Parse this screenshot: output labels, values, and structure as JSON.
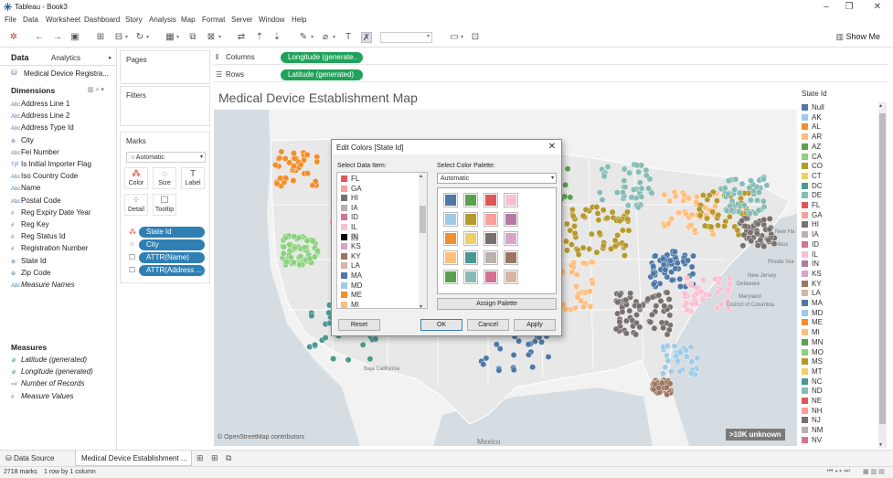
{
  "window": {
    "title": "Tableau - Book3"
  },
  "menu": [
    "File",
    "Data",
    "Worksheet",
    "Dashboard",
    "Story",
    "Analysis",
    "Map",
    "Format",
    "Server",
    "Window",
    "Help"
  ],
  "toolbar": {
    "show_me": "Show Me"
  },
  "datapane": {
    "tab_data": "Data",
    "tab_analytics": "Analytics",
    "datasource": "Medical Device Registra...",
    "dimensions_header": "Dimensions",
    "dimensions": [
      {
        "icon": "Abc",
        "label": "Address Line 1"
      },
      {
        "icon": "Abc",
        "label": "Address Line 2"
      },
      {
        "icon": "Abc",
        "label": "Address Type Id"
      },
      {
        "icon": "globe-icon",
        "label": "City"
      },
      {
        "icon": "Abc",
        "label": "Fei Number"
      },
      {
        "icon": "T|F",
        "label": "Is Initial Importer Flag"
      },
      {
        "icon": "Abc",
        "label": "Iso Country Code"
      },
      {
        "icon": "Abc",
        "label": "Name"
      },
      {
        "icon": "Abc",
        "label": "Postal Code"
      },
      {
        "icon": "#",
        "label": "Reg Expiry Date Year"
      },
      {
        "icon": "#",
        "label": "Reg Key"
      },
      {
        "icon": "#",
        "label": "Reg Status Id"
      },
      {
        "icon": "#",
        "label": "Registration Number"
      },
      {
        "icon": "globe-icon",
        "label": "State Id"
      },
      {
        "icon": "globe-icon",
        "label": "Zip Code"
      },
      {
        "icon": "Abc",
        "label": "Measure Names"
      }
    ],
    "measures_header": "Measures",
    "measures": [
      {
        "icon": "globe-icon",
        "label": "Latitude (generated)"
      },
      {
        "icon": "globe-icon",
        "label": "Longitude (generated)"
      },
      {
        "icon": "=#",
        "label": "Number of Records"
      },
      {
        "icon": "#",
        "label": "Measure Values"
      }
    ]
  },
  "pages": {
    "title": "Pages"
  },
  "filters": {
    "title": "Filters"
  },
  "marks": {
    "title": "Marks",
    "type": "Automatic",
    "buttons": [
      "Color",
      "Size",
      "Label",
      "Detail",
      "Tooltip"
    ],
    "pills": [
      {
        "icon": "color-icon",
        "label": "State Id"
      },
      {
        "icon": "detail-icon",
        "label": "City"
      },
      {
        "icon": "tooltip-icon",
        "label": "ATTR(Name)"
      },
      {
        "icon": "tooltip-icon",
        "label": "ATTR(Address ..."
      }
    ]
  },
  "shelves": {
    "columns_label": "Columns",
    "columns_pill": "Longitude (generate..",
    "rows_label": "Rows",
    "rows_pill": "Latitude (generated)"
  },
  "map": {
    "title": "Medical Device Establishment Map",
    "attribution": "© OpenStreetMap contributors",
    "unknown_badge": ">10K unknown",
    "places": [
      "New Ha",
      "Mass",
      "Rhode Isla",
      "New Jersey",
      "Delaware",
      "Maryland",
      "District of Columbia",
      "Baja California",
      "Mexico"
    ]
  },
  "legend": {
    "title": "State Id",
    "items": [
      {
        "label": "Null",
        "color": "#4e79a7"
      },
      {
        "label": "AK",
        "color": "#a0cbe8"
      },
      {
        "label": "AL",
        "color": "#f28e2b"
      },
      {
        "label": "AR",
        "color": "#ffbe7d"
      },
      {
        "label": "AZ",
        "color": "#59a14f"
      },
      {
        "label": "CA",
        "color": "#8cd17d"
      },
      {
        "label": "CO",
        "color": "#b6992d"
      },
      {
        "label": "CT",
        "color": "#f1ce63"
      },
      {
        "label": "DC",
        "color": "#499894"
      },
      {
        "label": "DE",
        "color": "#86bcb6"
      },
      {
        "label": "FL",
        "color": "#e15759"
      },
      {
        "label": "GA",
        "color": "#ff9d9a"
      },
      {
        "label": "HI",
        "color": "#79706e"
      },
      {
        "label": "IA",
        "color": "#bab0ac"
      },
      {
        "label": "ID",
        "color": "#d37295"
      },
      {
        "label": "IL",
        "color": "#fabfd2"
      },
      {
        "label": "IN",
        "color": "#b07aa1"
      },
      {
        "label": "KS",
        "color": "#d4a6c8"
      },
      {
        "label": "KY",
        "color": "#9d7660"
      },
      {
        "label": "LA",
        "color": "#d7b5a6"
      },
      {
        "label": "MA",
        "color": "#4e79a7"
      },
      {
        "label": "MD",
        "color": "#a0cbe8"
      },
      {
        "label": "ME",
        "color": "#f28e2b"
      },
      {
        "label": "MI",
        "color": "#ffbe7d"
      },
      {
        "label": "MN",
        "color": "#59a14f"
      },
      {
        "label": "MO",
        "color": "#8cd17d"
      },
      {
        "label": "MS",
        "color": "#b6992d"
      },
      {
        "label": "MT",
        "color": "#f1ce63"
      },
      {
        "label": "NC",
        "color": "#499894"
      },
      {
        "label": "ND",
        "color": "#86bcb6"
      },
      {
        "label": "NE",
        "color": "#e15759"
      },
      {
        "label": "NH",
        "color": "#ff9d9a"
      },
      {
        "label": "NJ",
        "color": "#79706e"
      },
      {
        "label": "NM",
        "color": "#bab0ac"
      },
      {
        "label": "NV",
        "color": "#d37295"
      }
    ]
  },
  "dialog": {
    "title": "Edit Colors [State Id]",
    "select_item_label": "Select Data Item:",
    "select_palette_label": "Select Color Palette:",
    "palette_value": "Automatic",
    "items": [
      {
        "label": "FL",
        "color": "#e15759"
      },
      {
        "label": "GA",
        "color": "#ff9d9a"
      },
      {
        "label": "HI",
        "color": "#79706e"
      },
      {
        "label": "IA",
        "color": "#bab0ac"
      },
      {
        "label": "ID",
        "color": "#d37295"
      },
      {
        "label": "IL",
        "color": "#fabfd2"
      },
      {
        "label": "IN",
        "color": "#000000"
      },
      {
        "label": "KS",
        "color": "#d4a6c8"
      },
      {
        "label": "KY",
        "color": "#9d7660"
      },
      {
        "label": "LA",
        "color": "#d7b5a6"
      },
      {
        "label": "MA",
        "color": "#4e79a7"
      },
      {
        "label": "MD",
        "color": "#a0cbe8"
      },
      {
        "label": "ME",
        "color": "#f28e2b"
      },
      {
        "label": "MI",
        "color": "#ffbe7d"
      }
    ],
    "selected_item": "IN",
    "palette": [
      "#4e79a7",
      "#59a14f",
      "#e15759",
      "#fabfd2",
      "#a0cbe8",
      "#b6992d",
      "#ff9d9a",
      "#b07aa1",
      "#f28e2b",
      "#f1ce63",
      "#79706e",
      "#d4a6c8",
      "#ffbe7d",
      "#499894",
      "#bab0ac",
      "#9d7660",
      "#59a14f",
      "#86bcb6",
      "#d37295",
      "#d7b5a6"
    ],
    "assign_palette": "Assign Palette",
    "reset": "Reset",
    "ok": "OK",
    "cancel": "Cancel",
    "apply": "Apply"
  },
  "bottom": {
    "data_source_tab": "Data Source",
    "sheet_tab": "Medical Device Establishment ...",
    "status_marks": "2718 marks",
    "status_rows": "1 row by 1 column"
  }
}
